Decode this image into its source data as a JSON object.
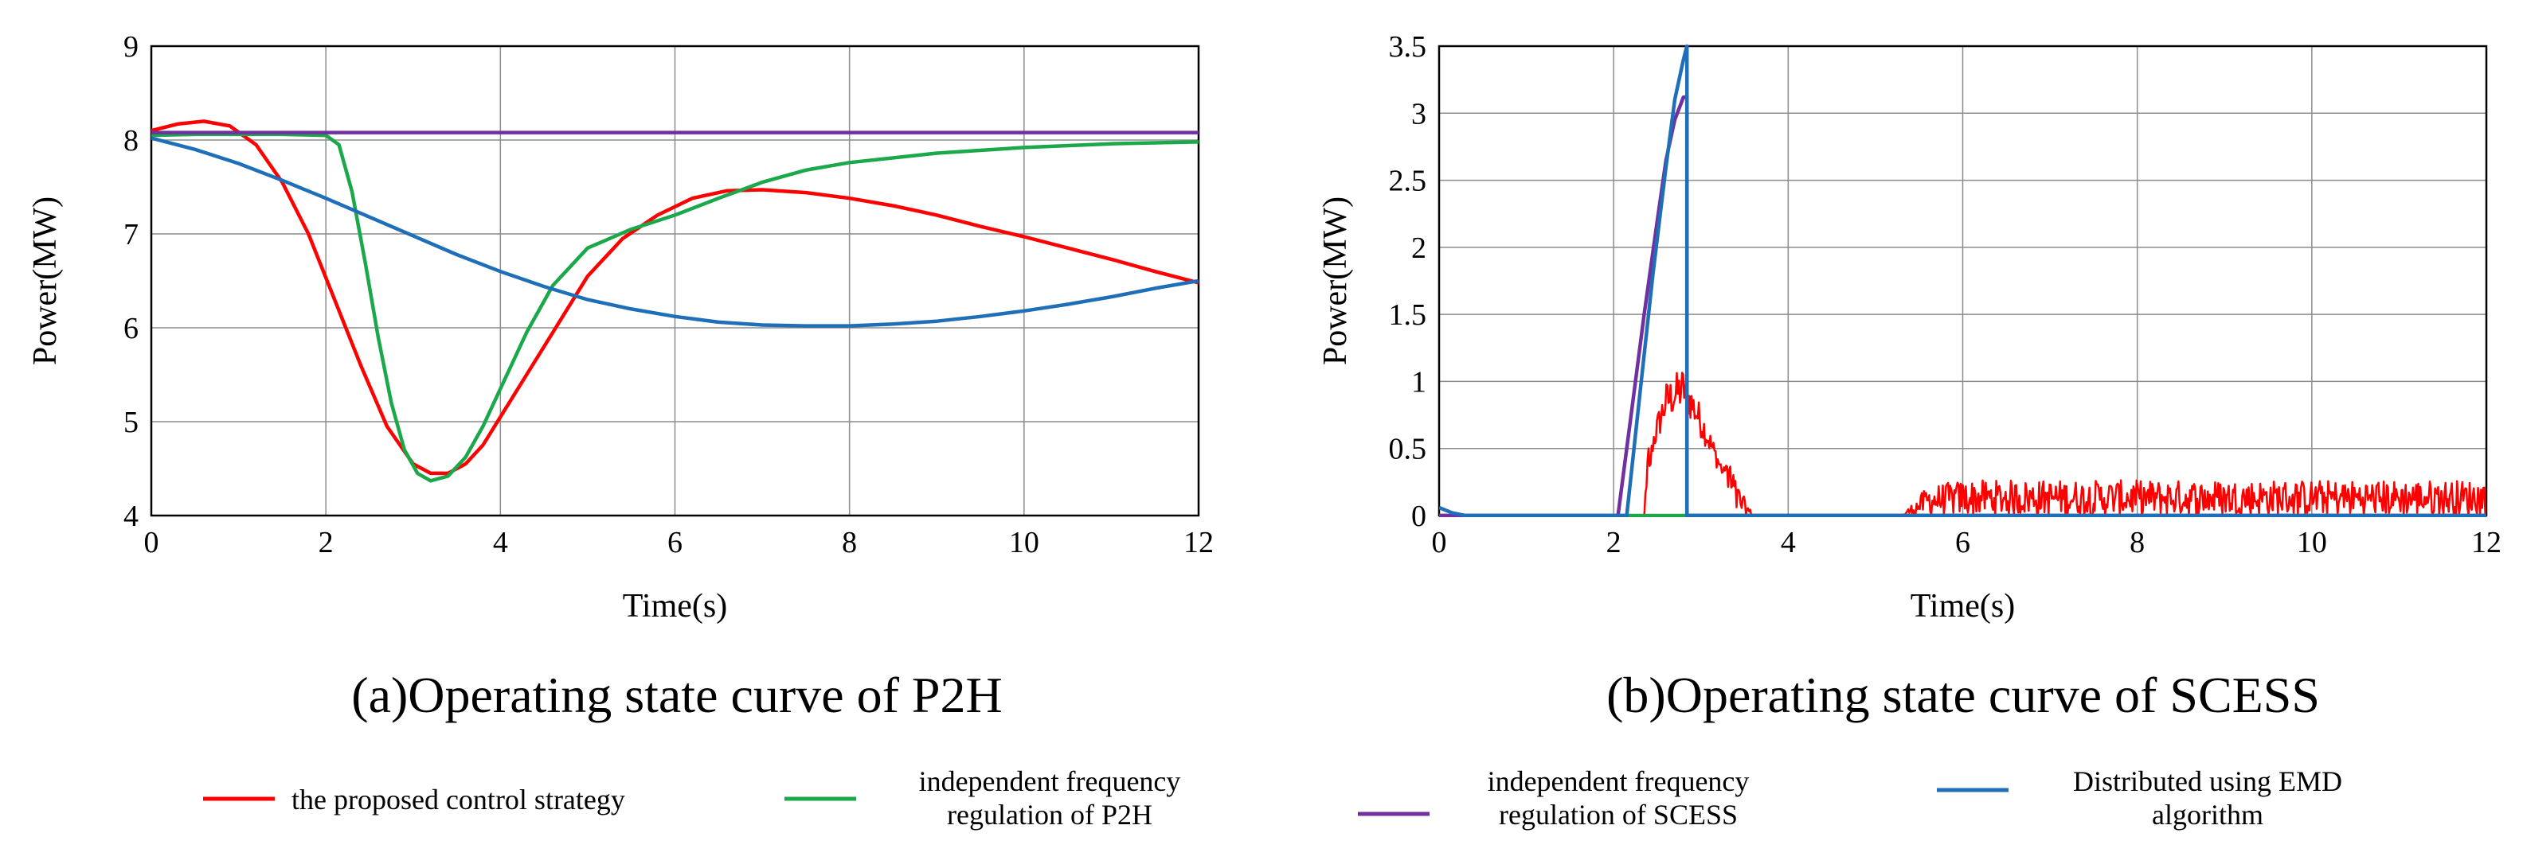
{
  "chart_data": [
    {
      "type": "line",
      "caption": "(a)Operating state curve of P2H",
      "xlabel": "Time(s)",
      "ylabel": "Power(MW)",
      "xlim": [
        0,
        12
      ],
      "ylim": [
        4,
        9
      ],
      "xticks": [
        0,
        2,
        4,
        6,
        8,
        10,
        12
      ],
      "yticks": [
        4,
        5,
        6,
        7,
        8,
        9
      ],
      "grid": true,
      "series": [
        {
          "name": "the proposed control strategy",
          "color": "#ff0000",
          "x": [
            0,
            0.3,
            0.6,
            0.9,
            1.2,
            1.5,
            1.8,
            2.1,
            2.4,
            2.7,
            3.0,
            3.2,
            3.4,
            3.6,
            3.8,
            4.0,
            4.3,
            4.6,
            5.0,
            5.4,
            5.8,
            6.2,
            6.6,
            7.0,
            7.5,
            8.0,
            8.5,
            9.0,
            9.5,
            10.0,
            10.5,
            11.0,
            11.5,
            12.0
          ],
          "y": [
            8.1,
            8.17,
            8.2,
            8.15,
            7.95,
            7.55,
            7.0,
            6.3,
            5.6,
            4.95,
            4.55,
            4.45,
            4.45,
            4.55,
            4.75,
            5.05,
            5.5,
            5.95,
            6.55,
            6.95,
            7.2,
            7.38,
            7.46,
            7.47,
            7.44,
            7.38,
            7.3,
            7.2,
            7.08,
            6.97,
            6.85,
            6.73,
            6.6,
            6.48
          ]
        },
        {
          "name": "independent frequency regulation of P2H",
          "color": "#1aa84a",
          "x": [
            0,
            0.5,
            1.0,
            1.5,
            2.0,
            2.15,
            2.3,
            2.45,
            2.6,
            2.75,
            2.9,
            3.05,
            3.2,
            3.4,
            3.6,
            3.8,
            4.0,
            4.3,
            4.6,
            5.0,
            5.5,
            6.0,
            6.5,
            7.0,
            7.5,
            8.0,
            9.0,
            10.0,
            11.0,
            12.0
          ],
          "y": [
            8.05,
            8.06,
            8.06,
            8.06,
            8.05,
            7.95,
            7.45,
            6.7,
            5.9,
            5.2,
            4.7,
            4.45,
            4.37,
            4.42,
            4.62,
            4.95,
            5.35,
            5.95,
            6.45,
            6.85,
            7.05,
            7.2,
            7.38,
            7.55,
            7.68,
            7.76,
            7.86,
            7.92,
            7.96,
            7.98
          ]
        },
        {
          "name": "independent frequency regulation of SCESS",
          "color": "#7030a0",
          "x": [
            0,
            12
          ],
          "y": [
            8.08,
            8.08
          ]
        },
        {
          "name": "Distributed using EMD algorithm",
          "color": "#1f6fb8",
          "x": [
            0,
            0.5,
            1.0,
            1.5,
            2.0,
            2.5,
            3.0,
            3.5,
            4.0,
            4.5,
            5.0,
            5.5,
            6.0,
            6.5,
            7.0,
            7.5,
            8.0,
            8.5,
            9.0,
            9.5,
            10.0,
            10.5,
            11.0,
            11.5,
            12.0
          ],
          "y": [
            8.02,
            7.9,
            7.75,
            7.57,
            7.38,
            7.18,
            6.98,
            6.78,
            6.6,
            6.44,
            6.3,
            6.2,
            6.12,
            6.06,
            6.03,
            6.02,
            6.02,
            6.04,
            6.07,
            6.12,
            6.18,
            6.25,
            6.33,
            6.42,
            6.5
          ]
        }
      ]
    },
    {
      "type": "line",
      "caption": "(b)Operating state curve of SCESS",
      "xlabel": "Time(s)",
      "ylabel": "Power(MW)",
      "xlim": [
        0,
        12
      ],
      "ylim": [
        0,
        3.5
      ],
      "xticks": [
        0,
        2,
        4,
        6,
        8,
        10,
        12
      ],
      "yticks": [
        0,
        0.5,
        1,
        1.5,
        2,
        2.5,
        3,
        3.5
      ],
      "grid": true,
      "series": [
        {
          "name": "the proposed control strategy",
          "color": "#ff0000",
          "noisy": true,
          "x": [
            0,
            2.35,
            2.45,
            2.6,
            2.8,
            3.0,
            3.2,
            3.4,
            3.6,
            5.3,
            5.6,
            6.0,
            8.0,
            10.0,
            12.0
          ],
          "y": [
            0,
            0,
            0.55,
            0.85,
            0.95,
            0.7,
            0.4,
            0.12,
            0,
            0,
            0.1,
            0.12,
            0.12,
            0.12,
            0.12
          ]
        },
        {
          "name": "independent frequency regulation of P2H",
          "color": "#1aa84a",
          "x": [
            0,
            12
          ],
          "y": [
            0,
            0
          ]
        },
        {
          "name": "independent frequency regulation of SCESS",
          "color": "#7030a0",
          "x": [
            0,
            2.05,
            2.2,
            2.35,
            2.5,
            2.6,
            2.7,
            2.8,
            2.84,
            2.84,
            12
          ],
          "y": [
            0,
            0,
            0.75,
            1.5,
            2.2,
            2.65,
            2.95,
            3.12,
            3.12,
            0,
            0
          ]
        },
        {
          "name": "Distributed using EMD algorithm",
          "color": "#1f6fb8",
          "x": [
            0,
            0.15,
            0.3,
            2.15,
            2.3,
            2.45,
            2.6,
            2.7,
            2.8,
            2.84,
            2.84,
            3.2,
            12
          ],
          "y": [
            0.06,
            0.02,
            0,
            0,
            0.9,
            1.8,
            2.6,
            3.1,
            3.4,
            3.5,
            0,
            0,
            0
          ]
        }
      ]
    }
  ],
  "legend": [
    {
      "label": "the proposed control strategy",
      "color": "#ff0000"
    },
    {
      "label": "independent frequency regulation of P2H",
      "color": "#1aa84a"
    },
    {
      "label": "independent frequency regulation of SCESS",
      "color": "#7030a0"
    },
    {
      "label": "Distributed using EMD algorithm",
      "color": "#1f6fb8"
    }
  ],
  "legend_text": {
    "item1": "the proposed control strategy",
    "item2_line1": "independent frequency",
    "item2_line2": "regulation of P2H",
    "item3_line1": "independent frequency",
    "item3_line2": "regulation of SCESS",
    "item4_line1": "Distributed using EMD",
    "item4_line2": "algorithm"
  }
}
